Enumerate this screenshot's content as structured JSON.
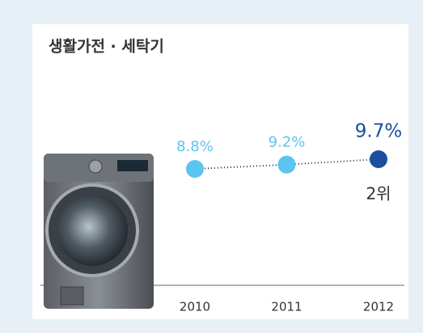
{
  "chart_data": {
    "type": "line",
    "title": "생활가전 · 세탁기",
    "categories": [
      "2010",
      "2011",
      "2012"
    ],
    "values": [
      8.8,
      9.2,
      9.7
    ],
    "value_labels": [
      "8.8%",
      "9.2%",
      "9.7%"
    ],
    "point_colors": [
      "#5bc4f0",
      "#5bc4f0",
      "#1a4fa0"
    ],
    "line_color": "#333333",
    "annotation": "2위"
  }
}
